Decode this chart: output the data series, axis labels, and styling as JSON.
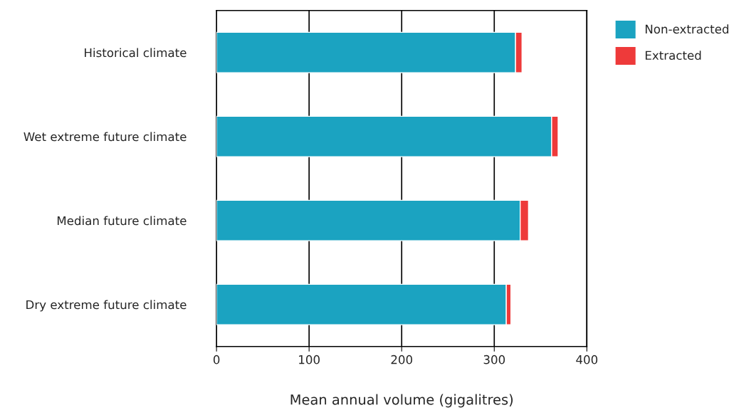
{
  "chart_data": {
    "type": "bar",
    "orientation": "horizontal",
    "stacked": true,
    "categories": [
      "Historical climate",
      "Wet extreme future climate",
      "Median future climate",
      "Dry extreme future climate"
    ],
    "series": [
      {
        "name": "Non-extracted",
        "color": "#1ba3c1",
        "values": [
          323,
          362,
          328,
          313
        ]
      },
      {
        "name": "Extracted",
        "color": "#ee3a3a",
        "values": [
          7,
          7,
          9,
          5
        ]
      }
    ],
    "xlabel": "Mean annual volume (gigalitres)",
    "xlim": [
      0,
      400
    ],
    "xticks": [
      0,
      100,
      200,
      300,
      400
    ],
    "grid": "x",
    "legend": "top right"
  }
}
